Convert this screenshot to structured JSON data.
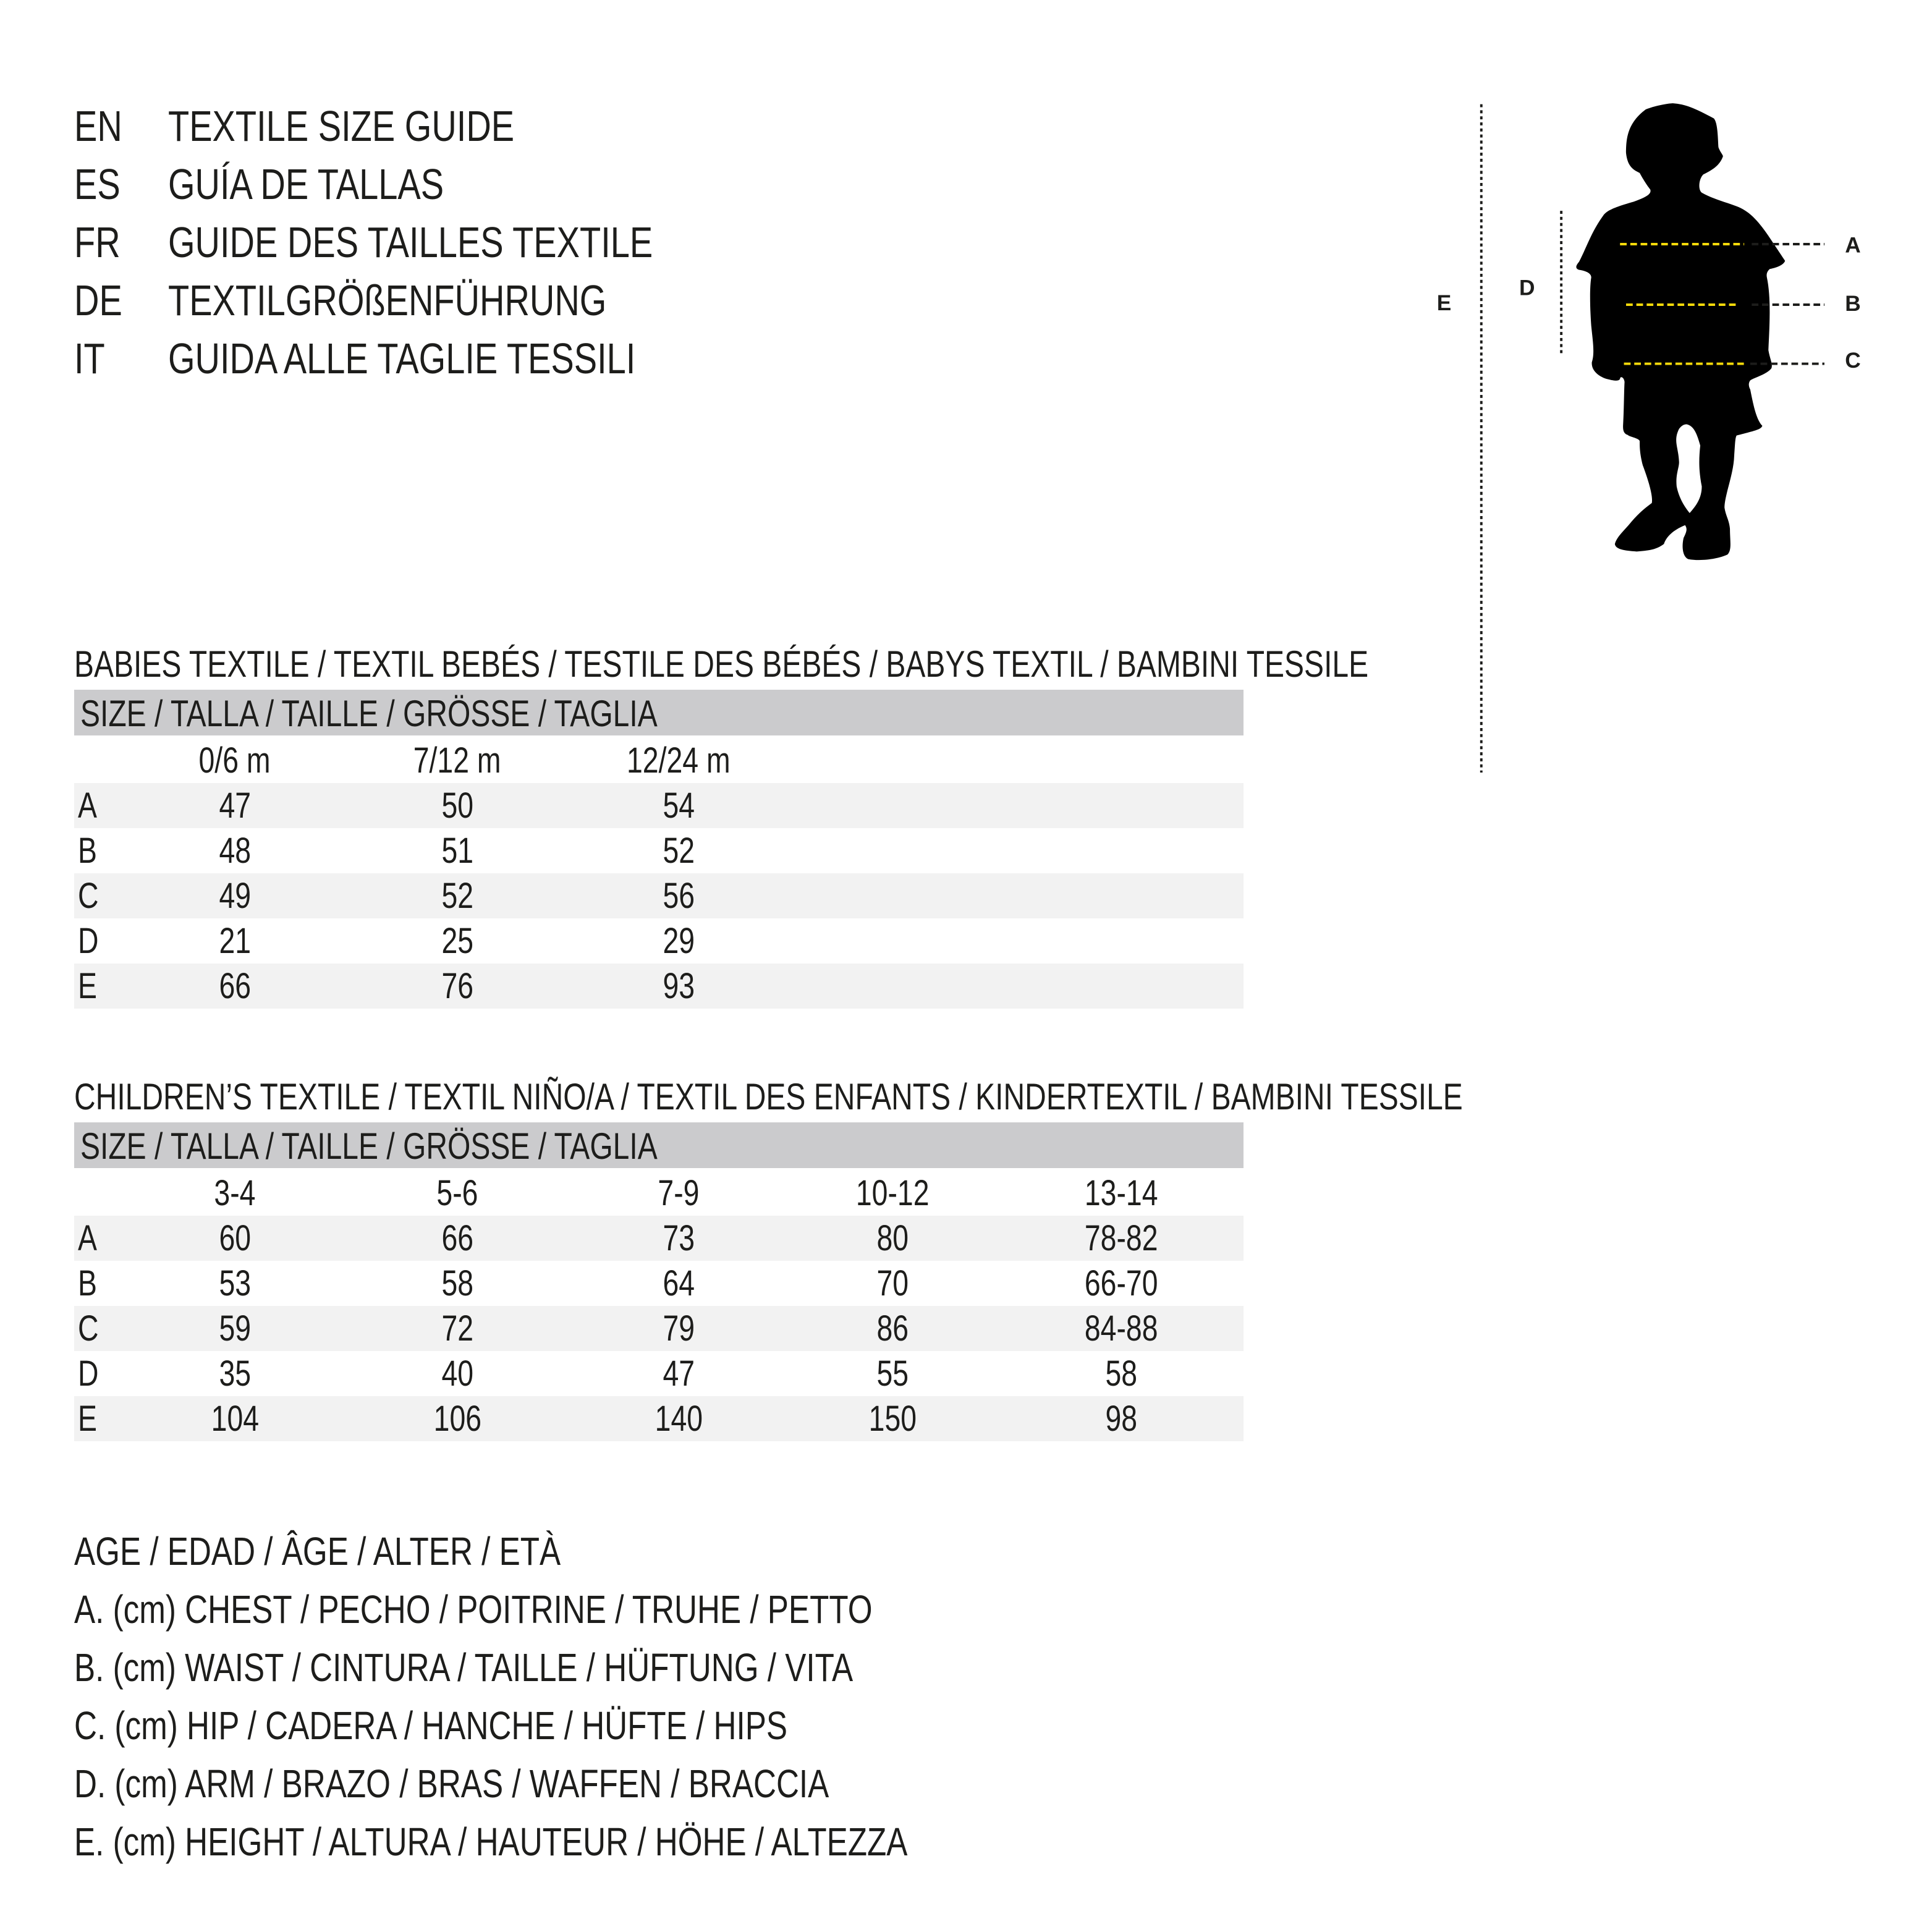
{
  "languages": [
    {
      "code": "EN",
      "title": "TEXTILE SIZE GUIDE"
    },
    {
      "code": "ES",
      "title": "GUÍA DE TALLAS"
    },
    {
      "code": "FR",
      "title": "GUIDE DES TAILLES TEXTILE"
    },
    {
      "code": "DE",
      "title": "TEXTILGRÖßENFÜHRUNG"
    },
    {
      "code": "IT",
      "title": "GUIDA ALLE TAGLIE TESSILI"
    }
  ],
  "figure": {
    "labels": {
      "A": "A",
      "B": "B",
      "C": "C",
      "D": "D",
      "E": "E"
    },
    "colors": {
      "silhouette": "#000000",
      "measure_line": "#f5d90a",
      "guide_line": "#1d1d1b"
    }
  },
  "babies": {
    "heading": "BABIES TEXTILE / TEXTIL BEBÉS / TESTILE DES BÉBÉS / BABYS TEXTIL / BAMBINI TESSILE",
    "size_header": "SIZE / TALLA / TAILLE / GRÖSSE / TAGLIA",
    "columns": [
      "0/6 m",
      "7/12 m",
      "12/24 m"
    ],
    "rows": [
      {
        "label": "A",
        "values": [
          "47",
          "50",
          "54"
        ]
      },
      {
        "label": "B",
        "values": [
          "48",
          "51",
          "52"
        ]
      },
      {
        "label": "C",
        "values": [
          "49",
          "52",
          "56"
        ]
      },
      {
        "label": "D",
        "values": [
          "21",
          "25",
          "29"
        ]
      },
      {
        "label": "E",
        "values": [
          "66",
          "76",
          "93"
        ]
      }
    ]
  },
  "children": {
    "heading": "CHILDREN’S TEXTILE / TEXTIL NIÑO/A / TEXTIL DES ENFANTS / KINDERTEXTIL / BAMBINI TESSILE",
    "size_header": "SIZE / TALLA / TAILLE / GRÖSSE / TAGLIA",
    "columns": [
      "3-4",
      "5-6",
      "7-9",
      "10-12",
      "13-14"
    ],
    "rows": [
      {
        "label": "A",
        "values": [
          "60",
          "66",
          "73",
          "80",
          "78-82"
        ]
      },
      {
        "label": "B",
        "values": [
          "53",
          "58",
          "64",
          "70",
          "66-70"
        ]
      },
      {
        "label": "C",
        "values": [
          "59",
          "72",
          "79",
          "86",
          "84-88"
        ]
      },
      {
        "label": "D",
        "values": [
          "35",
          "40",
          "47",
          "55",
          "58"
        ]
      },
      {
        "label": "E",
        "values": [
          "104",
          "106",
          "140",
          "150",
          "98"
        ]
      }
    ]
  },
  "legend": [
    "AGE / EDAD / ÂGE / ALTER / ETÀ",
    "A. (cm) CHEST / PECHO / POITRINE / TRUHE / PETTO",
    "B. (cm) WAIST / CINTURA / TAILLE / HÜFTUNG / VITA",
    "C. (cm) HIP / CADERA / HANCHE / HÜFTE / HIPS",
    "D. (cm) ARM / BRAZO / BRAS / WAFFEN / BRACCIA",
    "E. (cm) HEIGHT / ALTURA / HAUTEUR / HÖHE / ALTEZZA"
  ]
}
